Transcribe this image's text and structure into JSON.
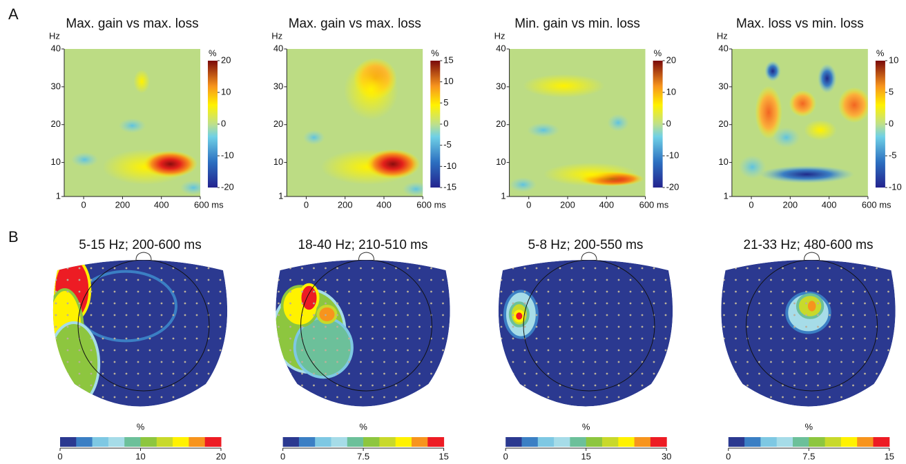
{
  "panel_labels": [
    "A",
    "B"
  ],
  "chart_data": [
    {
      "type": "heatmap",
      "title": "Max. gain vs max. loss",
      "ylabel": "Hz",
      "xlim": [
        -100,
        600
      ],
      "ylim": [
        1,
        40
      ],
      "xticks": [
        0,
        200,
        400,
        {
          "value": 600,
          "label": "600 ms"
        }
      ],
      "yticks": [
        1,
        10,
        20,
        30,
        40
      ],
      "colorbar_label": "%",
      "clim": [
        -20,
        20
      ],
      "cticks": [
        -20,
        -10,
        0,
        10,
        20
      ]
    },
    {
      "type": "heatmap",
      "title": "Max. gain vs max. loss",
      "ylabel": "Hz",
      "xlim": [
        -100,
        600
      ],
      "ylim": [
        1,
        40
      ],
      "xticks": [
        0,
        200,
        400,
        {
          "value": 600,
          "label": "600 ms"
        }
      ],
      "yticks": [
        1,
        10,
        20,
        30,
        40
      ],
      "colorbar_label": "%",
      "clim": [
        -15,
        15
      ],
      "cticks": [
        -15,
        -10,
        -5,
        0,
        5,
        10,
        15
      ]
    },
    {
      "type": "heatmap",
      "title": "Min. gain vs min. loss",
      "ylabel": "Hz",
      "xlim": [
        -100,
        600
      ],
      "ylim": [
        1,
        40
      ],
      "xticks": [
        0,
        200,
        400,
        {
          "value": 600,
          "label": "600 ms"
        }
      ],
      "yticks": [
        1,
        10,
        20,
        30,
        40
      ],
      "colorbar_label": "%",
      "clim": [
        -20,
        20
      ],
      "cticks": [
        -20,
        -10,
        0,
        10,
        20
      ]
    },
    {
      "type": "heatmap",
      "title": "Max. loss vs min. loss",
      "ylabel": "Hz",
      "xlim": [
        -100,
        600
      ],
      "ylim": [
        1,
        40
      ],
      "xticks": [
        0,
        200,
        400,
        {
          "value": 600,
          "label": "600 ms"
        }
      ],
      "yticks": [
        1,
        10,
        20,
        30,
        40
      ],
      "colorbar_label": "%",
      "clim": [
        -10,
        10
      ],
      "cticks": [
        -10,
        -5,
        0,
        5,
        10
      ]
    },
    {
      "type": "topomap",
      "title": "5-15 Hz; 200-600 ms",
      "colorbar_label": "%",
      "clim": [
        0,
        20
      ],
      "cticks": [
        0,
        10,
        20
      ],
      "colors": [
        "#2b3990",
        "#3b7fc4",
        "#7ec8e3",
        "#a6dce8",
        "#6cc09a",
        "#8dc63f",
        "#c8d92b",
        "#fff200",
        "#f7941d",
        "#ed1c24"
      ]
    },
    {
      "type": "topomap",
      "title": "18-40 Hz; 210-510 ms",
      "colorbar_label": "%",
      "clim": [
        0,
        15
      ],
      "cticks": [
        0,
        7.5,
        15
      ],
      "colors": [
        "#2b3990",
        "#3b7fc4",
        "#7ec8e3",
        "#a6dce8",
        "#6cc09a",
        "#8dc63f",
        "#c8d92b",
        "#fff200",
        "#f7941d",
        "#ed1c24"
      ]
    },
    {
      "type": "topomap",
      "title": "5-8 Hz; 200-550 ms",
      "colorbar_label": "%",
      "clim": [
        0,
        30
      ],
      "cticks": [
        0,
        15,
        30
      ],
      "colors": [
        "#2b3990",
        "#3b7fc4",
        "#7ec8e3",
        "#a6dce8",
        "#6cc09a",
        "#8dc63f",
        "#c8d92b",
        "#fff200",
        "#f7941d",
        "#ed1c24"
      ]
    },
    {
      "type": "topomap",
      "title": "21-33 Hz; 480-600 ms",
      "colorbar_label": "%",
      "clim": [
        0,
        15
      ],
      "cticks": [
        0,
        7.5,
        15
      ],
      "colors": [
        "#2b3990",
        "#3b7fc4",
        "#7ec8e3",
        "#a6dce8",
        "#6cc09a",
        "#8dc63f",
        "#c8d92b",
        "#fff200",
        "#f7941d",
        "#ed1c24"
      ]
    }
  ]
}
